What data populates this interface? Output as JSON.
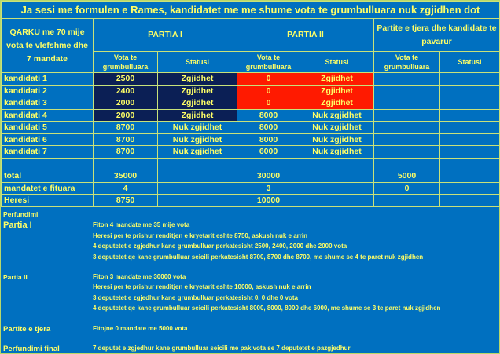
{
  "title": "Ja sesi me formulen e Rames,  kandidatet me me shume vota te grumbulluara nuk zgjidhen dot",
  "header": {
    "qarku": "QARKU me 70 mije vota te vlefshme dhe 7 mandate",
    "partia1": "PARTIA I",
    "partia2": "PARTIA II",
    "others": "Partite e tjera dhe kandidate te pavarur",
    "votes": "Vota te grumbulluara",
    "status": "Statusi"
  },
  "rows": [
    {
      "label": "kandidati 1",
      "p1v": "2500",
      "p1s": "Zgjidhet",
      "p2v": "0",
      "p2s": "Zgjidhet"
    },
    {
      "label": "kandidati 2",
      "p1v": "2400",
      "p1s": "Zgjidhet",
      "p2v": "0",
      "p2s": "Zgjidhet"
    },
    {
      "label": "kandidati 3",
      "p1v": "2000",
      "p1s": "Zgjidhet",
      "p2v": "0",
      "p2s": "Zgjidhet"
    },
    {
      "label": "kandidati 4",
      "p1v": "2000",
      "p1s": "Zgjidhet",
      "p2v": "8000",
      "p2s": "Nuk zgjidhet"
    },
    {
      "label": "kandidati 5",
      "p1v": "8700",
      "p1s": "Nuk zgjidhet",
      "p2v": "8000",
      "p2s": "Nuk zgjidhet"
    },
    {
      "label": "kandidati 6",
      "p1v": "8700",
      "p1s": "Nuk zgjidhet",
      "p2v": "8000",
      "p2s": "Nuk zgjidhet"
    },
    {
      "label": "kandidati 7",
      "p1v": "8700",
      "p1s": "Nuk zgjidhet",
      "p2v": "6000",
      "p2s": "Nuk zgjidhet"
    }
  ],
  "totals": [
    {
      "label": "total",
      "p1": "35000",
      "p2": "30000",
      "o": "5000"
    },
    {
      "label": "mandatet e fituara",
      "p1": "4",
      "p2": "3",
      "o": "0"
    },
    {
      "label": "Heresi",
      "p1": "8750",
      "p2": "10000",
      "o": ""
    }
  ],
  "conclusion": {
    "heading": "Perfundimi",
    "p1_label": "Partia I",
    "p1_lines": [
      "Fiton 4 mandate me 35 mije vota",
      "Heresi per te prishur renditjen e kryetarit eshte 8750, askush nuk e arrin",
      "4 deputetet e zgjedhur kane grumbulluar perkatesisht 2500, 2400, 2000 dhe 2000 vota",
      "3 deputetet qe kane grumbulluar seicili perkatesisht 8700, 8700 dhe 8700, me shume se 4 te paret nuk zgjidhen"
    ],
    "p2_label": "Partia II",
    "p2_lines": [
      "Fiton 3 mandate me 30000 vota",
      "Heresi per te prishur renditjen e kryetarit eshte 10000, askush nuk e arrin",
      "3 deputetet e zgjedhur kane grumbulluar perkatesisht 0, 0 dhe 0 vota",
      "4 deputetet qe kane grumbulluar seicili perkatesisht 8000, 8000, 8000 dhe 6000, me shume se 3 te paret nuk zgjidhen"
    ],
    "o_label": "Partite e tjera",
    "o_line": "Fitojne 0 mandate me 5000 vota",
    "final_label": "Perfundimi final",
    "final_line": "7 deputet e zgjedhur kane grumbulluar seicili me pak vota se 7 deputetet e pazgjedhur"
  },
  "colors": {
    "background": "#0070c0",
    "text": "#ffff66",
    "elected_p1": "#0b1f55",
    "elected_p2": "#ff1a00"
  }
}
